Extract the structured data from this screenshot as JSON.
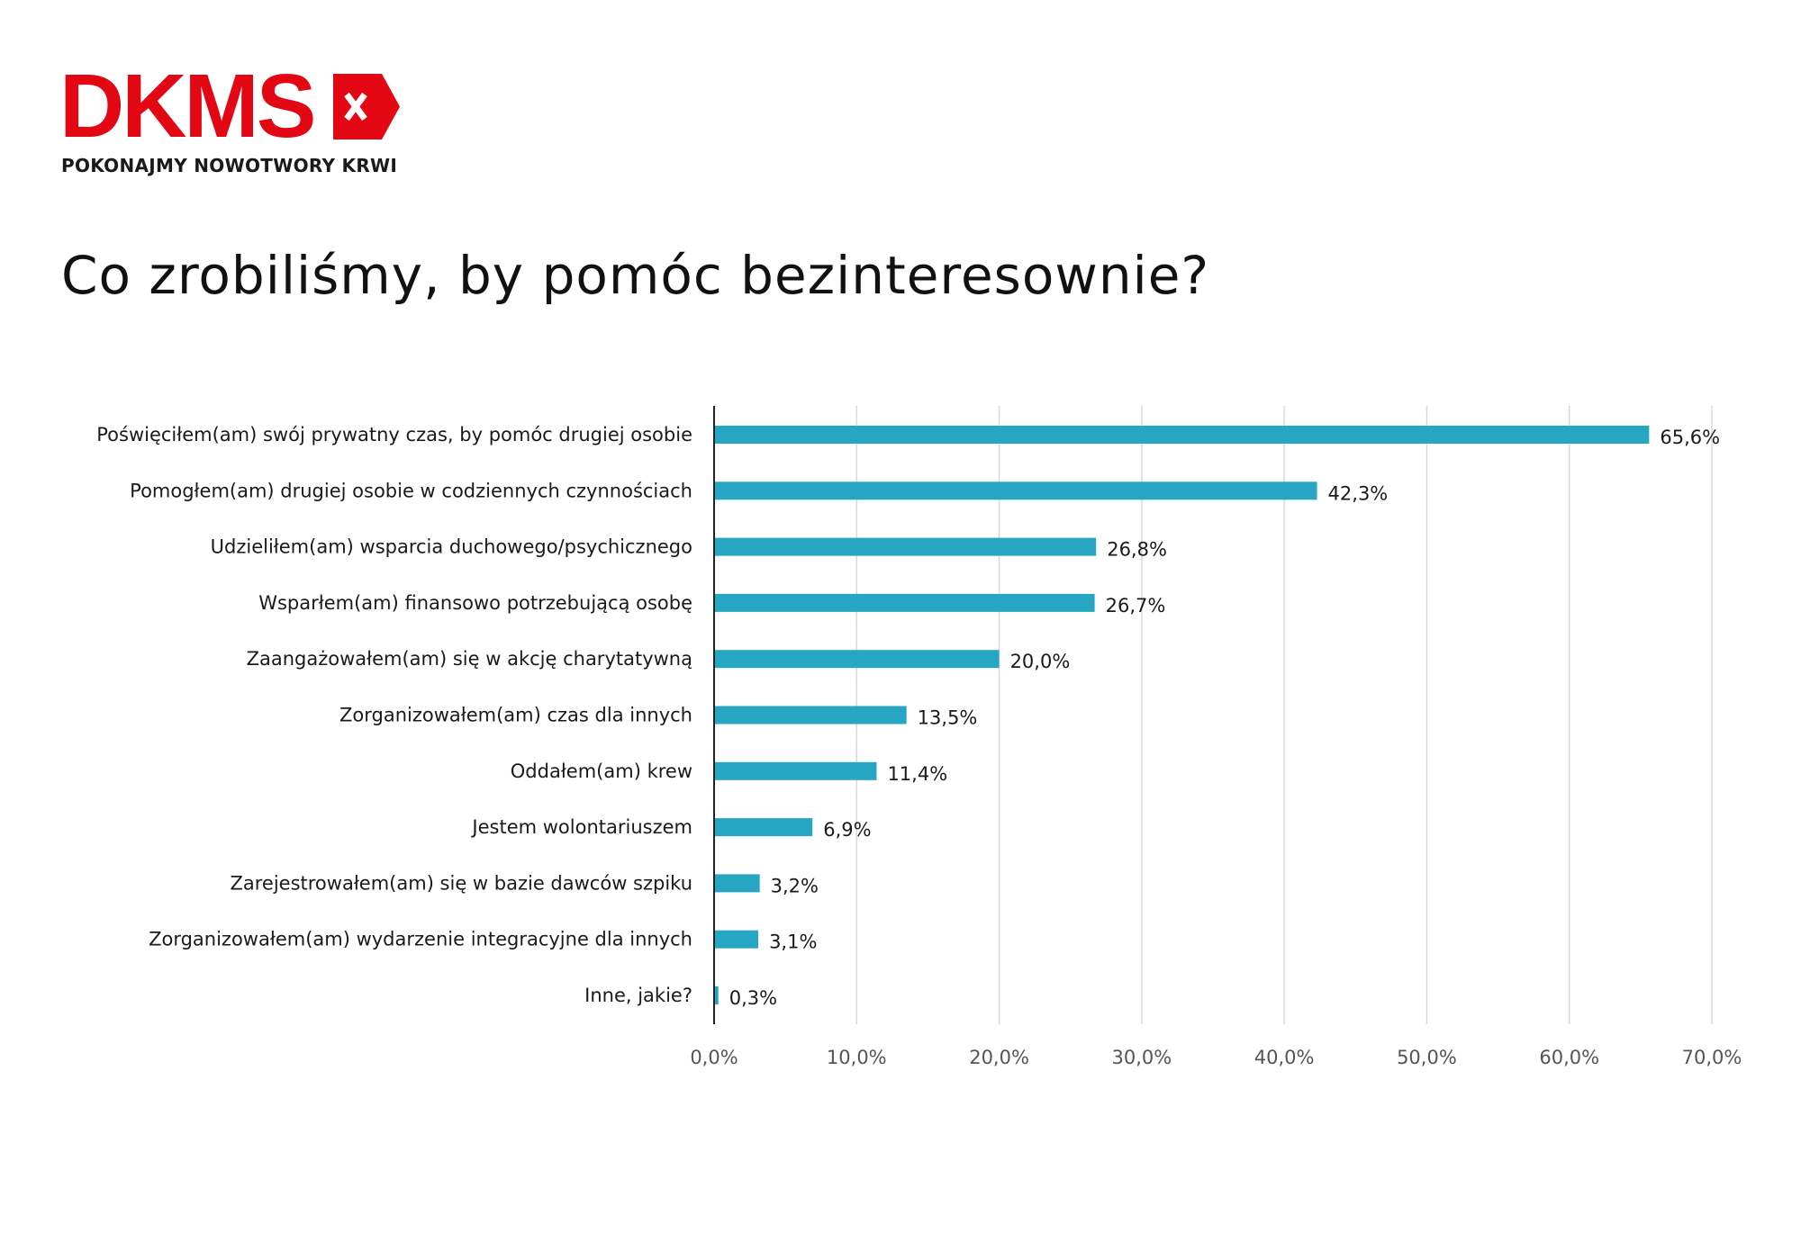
{
  "brand": {
    "name": "DKMS",
    "tagline": "POKONAJMY NOWOTWORY KRWI",
    "color": "#e30613"
  },
  "page": {
    "title": "Co zrobiliśmy, by pomóc bezinteresownie?"
  },
  "chart_data": {
    "type": "bar",
    "orientation": "horizontal",
    "categories": [
      "Poświęciłem(am) swój prywatny czas, by pomóc drugiej osobie",
      "Pomogłem(am) drugiej osobie w codziennych czynnościach",
      "Udzieliłem(am) wsparcia duchowego/psychicznego",
      "Wsparłem(am) finansowo potrzebującą osobę",
      "Zaangażowałem(am) się w akcję charytatywną",
      "Zorganizowałem(am) czas dla innych",
      "Oddałem(am) krew",
      "Jestem wolontariuszem",
      "Zarejestrowałem(am) się w bazie dawców szpiku",
      "Zorganizowałem(am) wydarzenie integracyjne dla innych",
      "Inne, jakie?"
    ],
    "values": [
      65.6,
      42.3,
      26.8,
      26.7,
      20.0,
      13.5,
      11.4,
      6.9,
      3.2,
      3.1,
      0.3
    ],
    "data_labels": [
      "65,6%",
      "42,3%",
      "26,8%",
      "26,7%",
      "20,0%",
      "13,5%",
      "11,4%",
      "6,9%",
      "3,2%",
      "3,1%",
      "0,3%"
    ],
    "xlim": [
      0,
      70
    ],
    "x_ticks": [
      0,
      10,
      20,
      30,
      40,
      50,
      60,
      70
    ],
    "x_tick_labels": [
      "0,0%",
      "10,0%",
      "20,0%",
      "30,0%",
      "40,0%",
      "50,0%",
      "60,0%",
      "70,0%"
    ],
    "grid": true,
    "bar_color": "#26a6c2",
    "grid_color": "#d9d9d9",
    "axis_color": "#222222",
    "label_color": "#1a1a1a",
    "tick_label_color": "#555555"
  }
}
